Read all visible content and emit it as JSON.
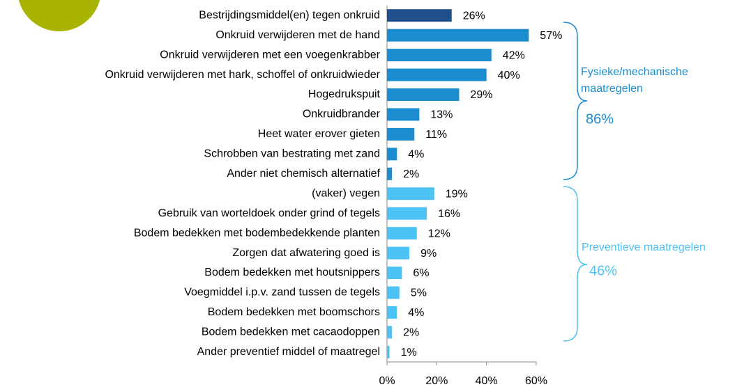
{
  "chart_data": {
    "type": "bar",
    "orientation": "horizontal",
    "categories": [
      "Bestrijdingsmiddel(en) tegen onkruid",
      "Onkruid verwijderen met de hand",
      "Onkruid verwijderen met een voegenkrabber",
      "Onkruid verwijderen met hark, schoffel of onkruidwieder",
      "Hogedrukspuit",
      "Onkruidbrander",
      "Heet water erover gieten",
      "Schrobben van bestrating met zand",
      "Ander niet chemisch alternatief",
      "(vaker) vegen",
      "Gebruik van worteldoek onder grind of tegels",
      "Bodem bedekken met bodembedekkende planten",
      "Zorgen dat afwatering goed is",
      "Bodem bedekken met houtsnippers",
      "Voegmiddel i.p.v. zand tussen de tegels",
      "Bodem bedekken met boomschors",
      "Bodem bedekken met cacaodoppen",
      "Ander preventief middel of maatregel"
    ],
    "values": [
      26,
      57,
      42,
      40,
      29,
      13,
      11,
      4,
      2,
      19,
      16,
      12,
      9,
      6,
      5,
      4,
      2,
      1
    ],
    "value_labels": [
      "26%",
      "57%",
      "42%",
      "40%",
      "29%",
      "13%",
      "11%",
      "4%",
      "2%",
      "19%",
      "16%",
      "12%",
      "9%",
      "6%",
      "5%",
      "4%",
      "2%",
      "1%"
    ],
    "colors": [
      "#1f4e8c",
      "#1a8ccf",
      "#1a8ccf",
      "#1a8ccf",
      "#1a8ccf",
      "#1a8ccf",
      "#1a8ccf",
      "#1a8ccf",
      "#1a8ccf",
      "#4dc3f5",
      "#4dc3f5",
      "#4dc3f5",
      "#4dc3f5",
      "#4dc3f5",
      "#4dc3f5",
      "#4dc3f5",
      "#4dc3f5",
      "#4dc3f5"
    ],
    "xlim": [
      0,
      60
    ],
    "xticks": [
      {
        "value": 0,
        "label": "0%"
      },
      {
        "value": 20,
        "label": "20%"
      },
      {
        "value": 40,
        "label": "40%"
      },
      {
        "value": 60,
        "label": "60%"
      }
    ],
    "annotations": [
      {
        "lines": [
          "Fysieke/mechanische",
          "maatregelen"
        ],
        "total": "86%",
        "color": "#1a8ccf"
      },
      {
        "lines": [
          "Preventieve maatregelen"
        ],
        "total": "46%",
        "color": "#4dc3f5"
      }
    ]
  }
}
